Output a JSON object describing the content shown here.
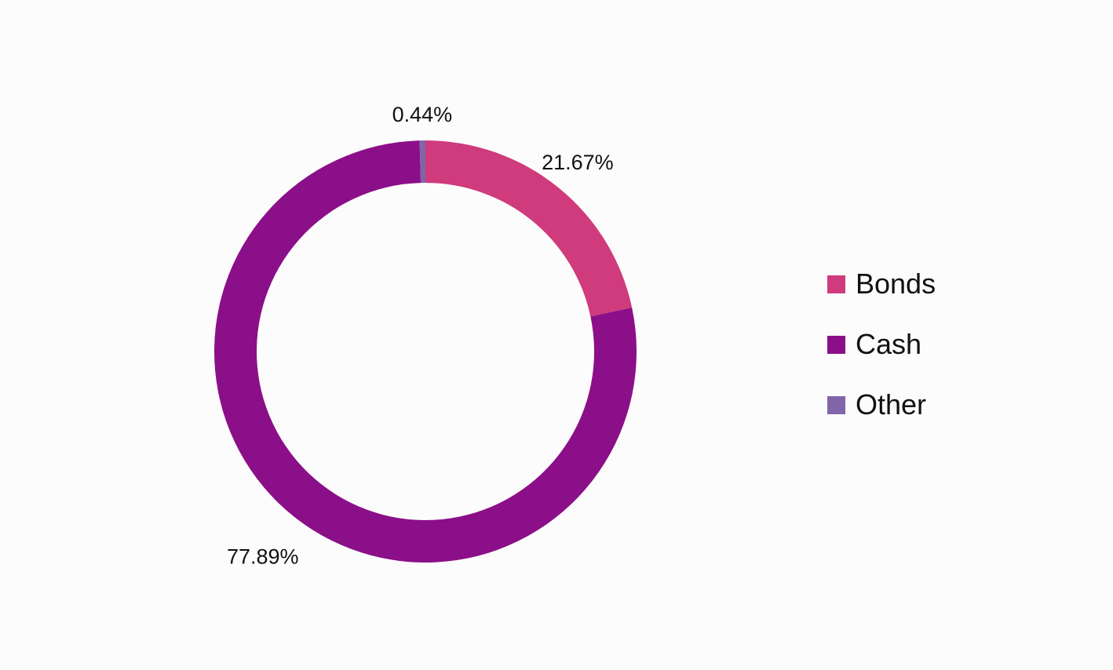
{
  "chart_data": {
    "type": "pie",
    "subtype": "donut",
    "title": "",
    "categories": [
      "Bonds",
      "Cash",
      "Other"
    ],
    "values": [
      21.67,
      77.89,
      0.44
    ],
    "labels": [
      "21.67%",
      "77.89%",
      "0.44%"
    ],
    "colors": [
      "#cf3b7c",
      "#8b0f88",
      "#8066a8"
    ],
    "legend": {
      "placement": "right",
      "entries": [
        "Bonds",
        "Cash",
        "Other"
      ]
    }
  }
}
